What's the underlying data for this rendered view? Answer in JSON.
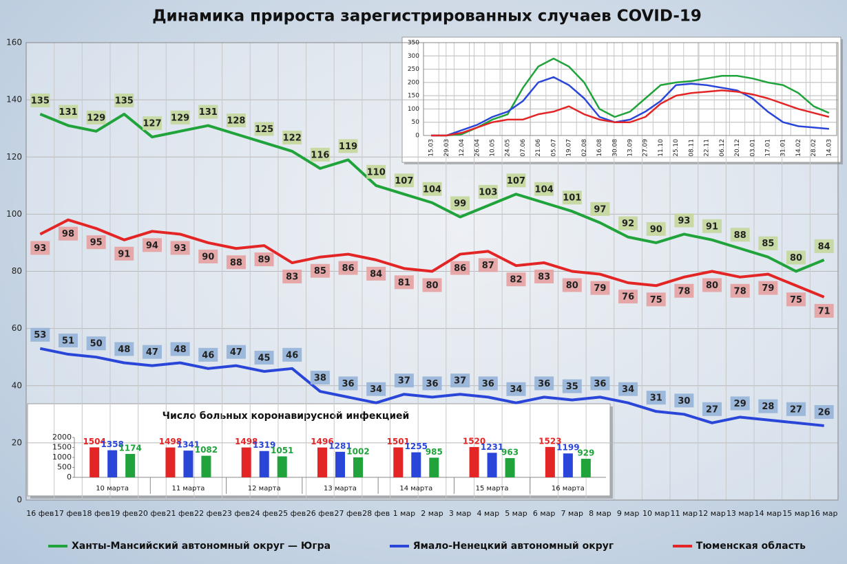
{
  "chart_data": [
    {
      "type": "line",
      "title": "Динамика прироста зарегистрированных случаев COVID-19",
      "categories": [
        "16 фев",
        "17 фев",
        "18 фев",
        "19 фев",
        "20 фев",
        "21 фев",
        "22 фев",
        "23 фев",
        "24 фев",
        "25 фев",
        "26 фев",
        "27 фев",
        "28 фев",
        "1 мар",
        "2 мар",
        "3 мар",
        "4 мар",
        "5 мар",
        "6 мар",
        "7 мар",
        "8 мар",
        "9 мар",
        "10 мар",
        "11 мар",
        "12 мар",
        "13 мар",
        "14 мар",
        "15 мар",
        "16 мар"
      ],
      "series": [
        {
          "name": "Ханты-Мансийский автономный округ — Югра",
          "color": "#1fa33a",
          "label_color": "#c4d79b",
          "values": [
            135,
            131,
            129,
            135,
            127,
            129,
            131,
            128,
            125,
            122,
            116,
            119,
            110,
            107,
            104,
            99,
            103,
            107,
            104,
            101,
            97,
            92,
            90,
            93,
            91,
            88,
            85,
            80,
            84
          ]
        },
        {
          "name": "Ямало-Ненецкий автономный округ",
          "color": "#2a46d8",
          "label_color": "#95b3d7",
          "values": [
            53,
            51,
            50,
            48,
            47,
            48,
            46,
            47,
            45,
            46,
            38,
            36,
            34,
            37,
            36,
            37,
            36,
            34,
            36,
            35,
            36,
            34,
            31,
            30,
            27,
            29,
            28,
            27,
            26
          ]
        },
        {
          "name": "Тюменская область",
          "color": "#e32525",
          "label_color": "#e6a0a0",
          "values": [
            93,
            98,
            95,
            91,
            94,
            93,
            90,
            88,
            89,
            83,
            85,
            86,
            84,
            81,
            80,
            86,
            87,
            82,
            83,
            80,
            79,
            76,
            75,
            78,
            80,
            78,
            79,
            75,
            71
          ]
        }
      ],
      "ylim": [
        0,
        160
      ],
      "yticks": [
        0,
        20,
        40,
        60,
        80,
        100,
        120,
        140,
        160
      ],
      "grid": true,
      "data_labels": true,
      "legend": "bottom"
    },
    {
      "type": "line",
      "categories": [
        "15.03",
        "29.03",
        "12.04",
        "26.04",
        "10.05",
        "24.05",
        "07.06",
        "21.06",
        "05.07",
        "19.07",
        "02.08",
        "16.08",
        "30.08",
        "13.09",
        "27.09",
        "11.10",
        "25.10",
        "08.11",
        "22.11",
        "06.12",
        "20.12",
        "03.01",
        "17.01",
        "31.01",
        "14.02",
        "28.02",
        "14.03"
      ],
      "series": [
        {
          "color": "#1fa33a",
          "values": [
            0,
            0,
            5,
            30,
            60,
            80,
            180,
            260,
            290,
            260,
            200,
            100,
            70,
            90,
            140,
            190,
            200,
            205,
            215,
            225,
            225,
            215,
            200,
            190,
            160,
            110,
            85
          ]
        },
        {
          "color": "#2a46d8",
          "values": [
            0,
            0,
            20,
            40,
            70,
            90,
            130,
            200,
            220,
            190,
            140,
            70,
            50,
            60,
            90,
            130,
            190,
            195,
            190,
            180,
            170,
            140,
            90,
            50,
            35,
            30,
            25
          ]
        },
        {
          "color": "#e32525",
          "values": [
            0,
            0,
            10,
            30,
            50,
            60,
            60,
            80,
            90,
            110,
            80,
            60,
            50,
            50,
            70,
            120,
            150,
            160,
            165,
            170,
            165,
            155,
            140,
            120,
            100,
            85,
            70
          ]
        }
      ],
      "ylim": [
        0,
        350
      ],
      "yticks": [
        0,
        50,
        100,
        150,
        200,
        250,
        300,
        350
      ],
      "grid": true
    },
    {
      "type": "bar",
      "title": "Число больных коронавирусной  инфекцией",
      "categories": [
        "10 марта",
        "11 марта",
        "12 марта",
        "13 марта",
        "14 марта",
        "15 марта",
        "16 марта"
      ],
      "series": [
        {
          "color": "#e32525",
          "values": [
            1504,
            1498,
            1498,
            1496,
            1501,
            1520,
            1523
          ]
        },
        {
          "color": "#2a46d8",
          "values": [
            1358,
            1341,
            1319,
            1281,
            1255,
            1231,
            1199
          ]
        },
        {
          "color": "#1fa33a",
          "values": [
            1174,
            1082,
            1051,
            1002,
            985,
            963,
            929
          ]
        }
      ],
      "ylim": [
        0,
        2000
      ],
      "yticks": [
        0,
        500,
        1000,
        1500,
        2000
      ],
      "data_labels": true
    }
  ]
}
